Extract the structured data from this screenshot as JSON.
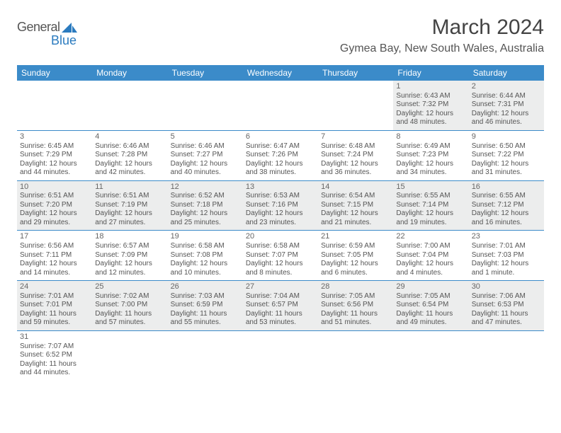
{
  "logo": {
    "part1": "General",
    "part2": "Blue"
  },
  "title": "March 2024",
  "location": "Gymea Bay, New South Wales, Australia",
  "colors": {
    "header_bg": "#3b8bc9",
    "header_text": "#ffffff",
    "row_alt_bg": "#eceded",
    "border": "#3b8bc9",
    "logo_blue": "#2b7bbf"
  },
  "weekdays": [
    "Sunday",
    "Monday",
    "Tuesday",
    "Wednesday",
    "Thursday",
    "Friday",
    "Saturday"
  ],
  "weeks": [
    [
      null,
      null,
      null,
      null,
      null,
      {
        "n": "1",
        "sr": "Sunrise: 6:43 AM",
        "ss": "Sunset: 7:32 PM",
        "d1": "Daylight: 12 hours",
        "d2": "and 48 minutes."
      },
      {
        "n": "2",
        "sr": "Sunrise: 6:44 AM",
        "ss": "Sunset: 7:31 PM",
        "d1": "Daylight: 12 hours",
        "d2": "and 46 minutes."
      }
    ],
    [
      {
        "n": "3",
        "sr": "Sunrise: 6:45 AM",
        "ss": "Sunset: 7:29 PM",
        "d1": "Daylight: 12 hours",
        "d2": "and 44 minutes."
      },
      {
        "n": "4",
        "sr": "Sunrise: 6:46 AM",
        "ss": "Sunset: 7:28 PM",
        "d1": "Daylight: 12 hours",
        "d2": "and 42 minutes."
      },
      {
        "n": "5",
        "sr": "Sunrise: 6:46 AM",
        "ss": "Sunset: 7:27 PM",
        "d1": "Daylight: 12 hours",
        "d2": "and 40 minutes."
      },
      {
        "n": "6",
        "sr": "Sunrise: 6:47 AM",
        "ss": "Sunset: 7:26 PM",
        "d1": "Daylight: 12 hours",
        "d2": "and 38 minutes."
      },
      {
        "n": "7",
        "sr": "Sunrise: 6:48 AM",
        "ss": "Sunset: 7:24 PM",
        "d1": "Daylight: 12 hours",
        "d2": "and 36 minutes."
      },
      {
        "n": "8",
        "sr": "Sunrise: 6:49 AM",
        "ss": "Sunset: 7:23 PM",
        "d1": "Daylight: 12 hours",
        "d2": "and 34 minutes."
      },
      {
        "n": "9",
        "sr": "Sunrise: 6:50 AM",
        "ss": "Sunset: 7:22 PM",
        "d1": "Daylight: 12 hours",
        "d2": "and 31 minutes."
      }
    ],
    [
      {
        "n": "10",
        "sr": "Sunrise: 6:51 AM",
        "ss": "Sunset: 7:20 PM",
        "d1": "Daylight: 12 hours",
        "d2": "and 29 minutes."
      },
      {
        "n": "11",
        "sr": "Sunrise: 6:51 AM",
        "ss": "Sunset: 7:19 PM",
        "d1": "Daylight: 12 hours",
        "d2": "and 27 minutes."
      },
      {
        "n": "12",
        "sr": "Sunrise: 6:52 AM",
        "ss": "Sunset: 7:18 PM",
        "d1": "Daylight: 12 hours",
        "d2": "and 25 minutes."
      },
      {
        "n": "13",
        "sr": "Sunrise: 6:53 AM",
        "ss": "Sunset: 7:16 PM",
        "d1": "Daylight: 12 hours",
        "d2": "and 23 minutes."
      },
      {
        "n": "14",
        "sr": "Sunrise: 6:54 AM",
        "ss": "Sunset: 7:15 PM",
        "d1": "Daylight: 12 hours",
        "d2": "and 21 minutes."
      },
      {
        "n": "15",
        "sr": "Sunrise: 6:55 AM",
        "ss": "Sunset: 7:14 PM",
        "d1": "Daylight: 12 hours",
        "d2": "and 19 minutes."
      },
      {
        "n": "16",
        "sr": "Sunrise: 6:55 AM",
        "ss": "Sunset: 7:12 PM",
        "d1": "Daylight: 12 hours",
        "d2": "and 16 minutes."
      }
    ],
    [
      {
        "n": "17",
        "sr": "Sunrise: 6:56 AM",
        "ss": "Sunset: 7:11 PM",
        "d1": "Daylight: 12 hours",
        "d2": "and 14 minutes."
      },
      {
        "n": "18",
        "sr": "Sunrise: 6:57 AM",
        "ss": "Sunset: 7:09 PM",
        "d1": "Daylight: 12 hours",
        "d2": "and 12 minutes."
      },
      {
        "n": "19",
        "sr": "Sunrise: 6:58 AM",
        "ss": "Sunset: 7:08 PM",
        "d1": "Daylight: 12 hours",
        "d2": "and 10 minutes."
      },
      {
        "n": "20",
        "sr": "Sunrise: 6:58 AM",
        "ss": "Sunset: 7:07 PM",
        "d1": "Daylight: 12 hours",
        "d2": "and 8 minutes."
      },
      {
        "n": "21",
        "sr": "Sunrise: 6:59 AM",
        "ss": "Sunset: 7:05 PM",
        "d1": "Daylight: 12 hours",
        "d2": "and 6 minutes."
      },
      {
        "n": "22",
        "sr": "Sunrise: 7:00 AM",
        "ss": "Sunset: 7:04 PM",
        "d1": "Daylight: 12 hours",
        "d2": "and 4 minutes."
      },
      {
        "n": "23",
        "sr": "Sunrise: 7:01 AM",
        "ss": "Sunset: 7:03 PM",
        "d1": "Daylight: 12 hours",
        "d2": "and 1 minute."
      }
    ],
    [
      {
        "n": "24",
        "sr": "Sunrise: 7:01 AM",
        "ss": "Sunset: 7:01 PM",
        "d1": "Daylight: 11 hours",
        "d2": "and 59 minutes."
      },
      {
        "n": "25",
        "sr": "Sunrise: 7:02 AM",
        "ss": "Sunset: 7:00 PM",
        "d1": "Daylight: 11 hours",
        "d2": "and 57 minutes."
      },
      {
        "n": "26",
        "sr": "Sunrise: 7:03 AM",
        "ss": "Sunset: 6:59 PM",
        "d1": "Daylight: 11 hours",
        "d2": "and 55 minutes."
      },
      {
        "n": "27",
        "sr": "Sunrise: 7:04 AM",
        "ss": "Sunset: 6:57 PM",
        "d1": "Daylight: 11 hours",
        "d2": "and 53 minutes."
      },
      {
        "n": "28",
        "sr": "Sunrise: 7:05 AM",
        "ss": "Sunset: 6:56 PM",
        "d1": "Daylight: 11 hours",
        "d2": "and 51 minutes."
      },
      {
        "n": "29",
        "sr": "Sunrise: 7:05 AM",
        "ss": "Sunset: 6:54 PM",
        "d1": "Daylight: 11 hours",
        "d2": "and 49 minutes."
      },
      {
        "n": "30",
        "sr": "Sunrise: 7:06 AM",
        "ss": "Sunset: 6:53 PM",
        "d1": "Daylight: 11 hours",
        "d2": "and 47 minutes."
      }
    ],
    [
      {
        "n": "31",
        "sr": "Sunrise: 7:07 AM",
        "ss": "Sunset: 6:52 PM",
        "d1": "Daylight: 11 hours",
        "d2": "and 44 minutes."
      },
      null,
      null,
      null,
      null,
      null,
      null
    ]
  ]
}
